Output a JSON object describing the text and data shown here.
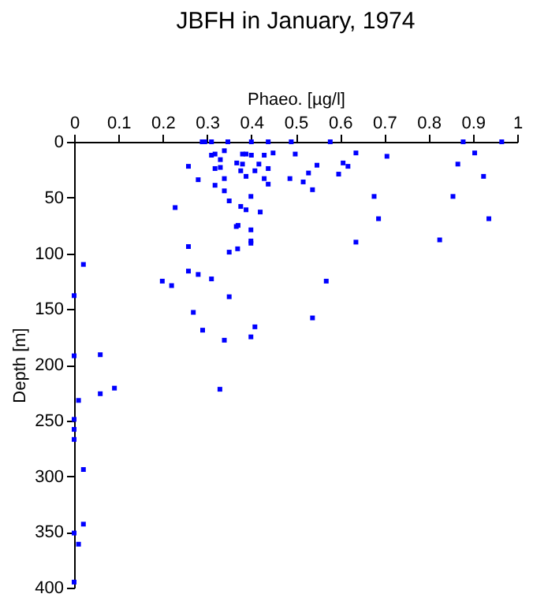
{
  "chart_data": {
    "type": "scatter",
    "title": "JBFH in January, 1974",
    "xlabel": "Phaeo. [µg/l]",
    "ylabel": "Depth [m]",
    "xlim": [
      0,
      1
    ],
    "xticks": [
      0,
      0.1,
      0.2,
      0.3,
      0.4,
      0.5,
      0.6,
      0.7,
      0.8,
      0.9,
      1
    ],
    "ylim": [
      400,
      0
    ],
    "yticks": [
      0,
      50,
      100,
      150,
      200,
      250,
      300,
      350,
      400
    ],
    "grid": false,
    "marker": "square",
    "series": [
      {
        "color": "#0000ff",
        "x": [
          0.289,
          0.295,
          0.31,
          0.347,
          0.4,
          0.438,
          0.49,
          0.578,
          0.878,
          0.965,
          0.339,
          0.31,
          0.318,
          0.38,
          0.388,
          0.4,
          0.429,
          0.449,
          0.499,
          0.636,
          0.706,
          0.904,
          0.33,
          0.367,
          0.38,
          0.417,
          0.438,
          0.258,
          0.548,
          0.607,
          0.618,
          0.866,
          0.318,
          0.33,
          0.376,
          0.388,
          0.408,
          0.529,
          0.597,
          0.924,
          0.28,
          0.339,
          0.429,
          0.487,
          0.438,
          0.318,
          0.517,
          0.339,
          0.538,
          0.35,
          0.228,
          0.376,
          0.388,
          0.42,
          0.399,
          0.677,
          0.687,
          0.936,
          0.855,
          0.37,
          0.366,
          0.399,
          0.399,
          0.399,
          0.636,
          0.825,
          0.258,
          0.369,
          0.35,
          0.021,
          0.258,
          0.28,
          0.31,
          0.199,
          0.569,
          0.22,
          0.35,
          0,
          0.269,
          0.29,
          0.538,
          0.408,
          0.399,
          0.339,
          0,
          0.059,
          0.329,
          0.059,
          0.091,
          0.01,
          0,
          0,
          0,
          0.021,
          0.021,
          0,
          0.01,
          0
        ],
        "values": [
          0,
          0,
          0,
          0,
          0,
          0,
          0,
          0,
          0,
          0,
          8,
          12,
          11,
          11,
          11,
          12,
          12,
          10,
          11,
          10,
          13,
          10,
          16,
          19,
          20,
          20,
          24,
          22,
          21,
          19,
          22,
          20,
          24,
          23,
          26,
          31,
          26,
          28,
          29,
          31,
          34,
          33,
          33,
          33,
          38,
          39,
          36,
          44,
          43,
          53,
          59,
          58,
          61,
          63,
          49,
          49,
          69,
          69,
          49,
          75,
          76,
          79,
          89,
          91,
          90,
          88,
          94,
          96,
          99,
          110,
          116,
          119,
          123,
          125,
          125,
          129,
          139,
          138,
          153,
          169,
          158,
          166,
          175,
          178,
          192,
          191,
          222,
          226,
          221,
          232,
          249,
          258,
          267,
          294,
          343,
          351,
          361,
          395
        ]
      }
    ]
  }
}
